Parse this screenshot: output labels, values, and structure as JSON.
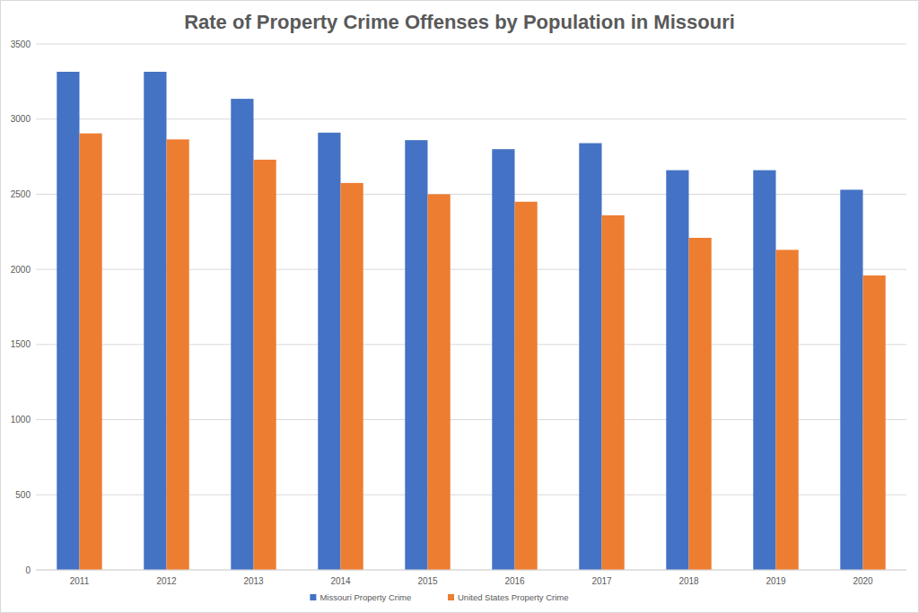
{
  "chart_data": {
    "type": "bar",
    "title": "Rate of Property Crime Offenses by Population in Missouri",
    "categories": [
      "2011",
      "2012",
      "2013",
      "2014",
      "2015",
      "2016",
      "2017",
      "2018",
      "2019",
      "2020"
    ],
    "series": [
      {
        "name": "Missouri Property Crime",
        "color": "#4472c4",
        "values": [
          3315,
          3315,
          3135,
          2910,
          2860,
          2800,
          2840,
          2660,
          2660,
          2530
        ]
      },
      {
        "name": "United States Property Crime",
        "color": "#ed7d31",
        "values": [
          2905,
          2865,
          2730,
          2575,
          2500,
          2450,
          2360,
          2210,
          2130,
          1960
        ]
      }
    ],
    "ylim": [
      0,
      3500
    ],
    "yticks": [
      0,
      500,
      1000,
      1500,
      2000,
      2500,
      3000,
      3500
    ],
    "grid": true,
    "legend": "bottom"
  }
}
